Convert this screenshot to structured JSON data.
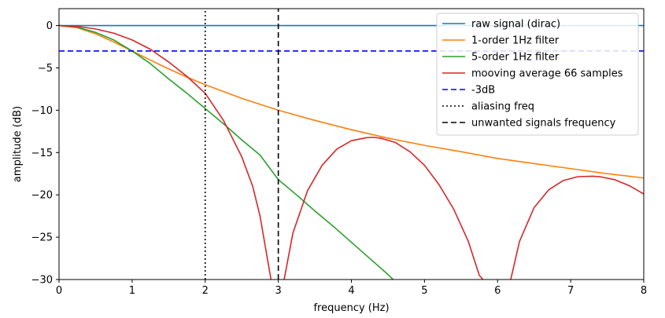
{
  "chart_data": {
    "type": "line",
    "title": "",
    "xlabel": "frequency (Hz)",
    "ylabel": "amplitude (dB)",
    "xlim": [
      0,
      8
    ],
    "ylim": [
      -30,
      2
    ],
    "xticks": [
      0,
      1,
      2,
      3,
      4,
      5,
      6,
      7,
      8
    ],
    "yticks": [
      0,
      -5,
      -10,
      -15,
      -20,
      -25,
      -30
    ],
    "grid": false,
    "legend_position": "top-right",
    "x_unit_note": "",
    "series": [
      {
        "name": "raw signal (dirac)",
        "color": "#1f77b4",
        "style": "solid",
        "x": [
          0,
          8
        ],
        "y": [
          0,
          0
        ]
      },
      {
        "name": "1-order 1Hz filter",
        "color": "#ff7f0e",
        "style": "solid",
        "x": [
          0,
          0.25,
          0.5,
          0.75,
          1.0,
          1.25,
          1.5,
          1.75,
          2.0,
          2.5,
          3.0,
          3.5,
          4.0,
          4.5,
          5.0,
          5.5,
          6.0,
          6.5,
          7.0,
          7.5,
          8.0
        ],
        "y": [
          0,
          -0.26,
          -0.97,
          -1.94,
          -3.01,
          -4.08,
          -5.12,
          -6.09,
          -6.99,
          -8.6,
          -10.0,
          -11.2,
          -12.3,
          -13.3,
          -14.15,
          -14.9,
          -15.7,
          -16.3,
          -16.9,
          -17.5,
          -18.0
        ]
      },
      {
        "name": "5-order 1Hz filter",
        "color": "#2ca02c",
        "style": "solid",
        "x": [
          0,
          0.25,
          0.5,
          0.75,
          1.0,
          1.25,
          1.5,
          1.75,
          2.0,
          2.25,
          2.5,
          2.75,
          3.0,
          3.25,
          3.5,
          3.75,
          4.0,
          4.25,
          4.5,
          4.57
        ],
        "y": [
          0,
          -0.2,
          -0.8,
          -1.7,
          -3.0,
          -4.5,
          -6.3,
          -8.0,
          -9.8,
          -11.6,
          -13.5,
          -15.3,
          -18.2,
          -20.0,
          -21.9,
          -23.7,
          -25.6,
          -27.5,
          -29.4,
          -30.0
        ]
      },
      {
        "name": "mooving average 66 samples",
        "color": "#d62728",
        "style": "solid",
        "segments": [
          {
            "x": [
              0,
              0.25,
              0.5,
              0.75,
              1.0,
              1.25,
              1.5,
              1.75,
              2.0,
              2.25,
              2.5,
              2.65,
              2.75,
              2.85,
              2.9
            ],
            "y": [
              0,
              -0.1,
              -0.4,
              -0.9,
              -1.7,
              -2.8,
              -4.3,
              -6.0,
              -8.0,
              -11.2,
              -15.5,
              -19.0,
              -22.5,
              -27.5,
              -30.0
            ]
          },
          {
            "x": [
              3.08,
              3.2,
              3.4,
              3.6,
              3.8,
              4.0,
              4.2,
              4.3,
              4.4,
              4.6,
              4.8,
              5.0,
              5.2,
              5.4,
              5.6,
              5.75,
              5.8
            ],
            "y": [
              -30.0,
              -24.5,
              -19.5,
              -16.5,
              -14.6,
              -13.6,
              -13.25,
              -13.2,
              -13.3,
              -13.8,
              -14.9,
              -16.5,
              -18.8,
              -21.7,
              -25.5,
              -29.5,
              -30.0
            ]
          },
          {
            "x": [
              6.18,
              6.3,
              6.5,
              6.7,
              6.9,
              7.1,
              7.3,
              7.4,
              7.6,
              7.8,
              8.0
            ],
            "y": [
              -30.0,
              -25.5,
              -21.5,
              -19.4,
              -18.3,
              -17.85,
              -17.8,
              -17.85,
              -18.2,
              -18.9,
              -19.9
            ]
          }
        ]
      },
      {
        "name": "-3dB",
        "color": "#0000ff",
        "style": "dashed",
        "x": [
          0,
          8
        ],
        "y": [
          -3,
          -3
        ]
      },
      {
        "name": "aliasing freq",
        "color": "#000000",
        "style": "dotted",
        "x": [
          2,
          2
        ],
        "y": [
          -30,
          2
        ]
      },
      {
        "name": "unwanted signals frequency",
        "color": "#000000",
        "style": "dashed",
        "x": [
          3,
          3
        ],
        "y": [
          -30,
          2
        ]
      }
    ]
  }
}
